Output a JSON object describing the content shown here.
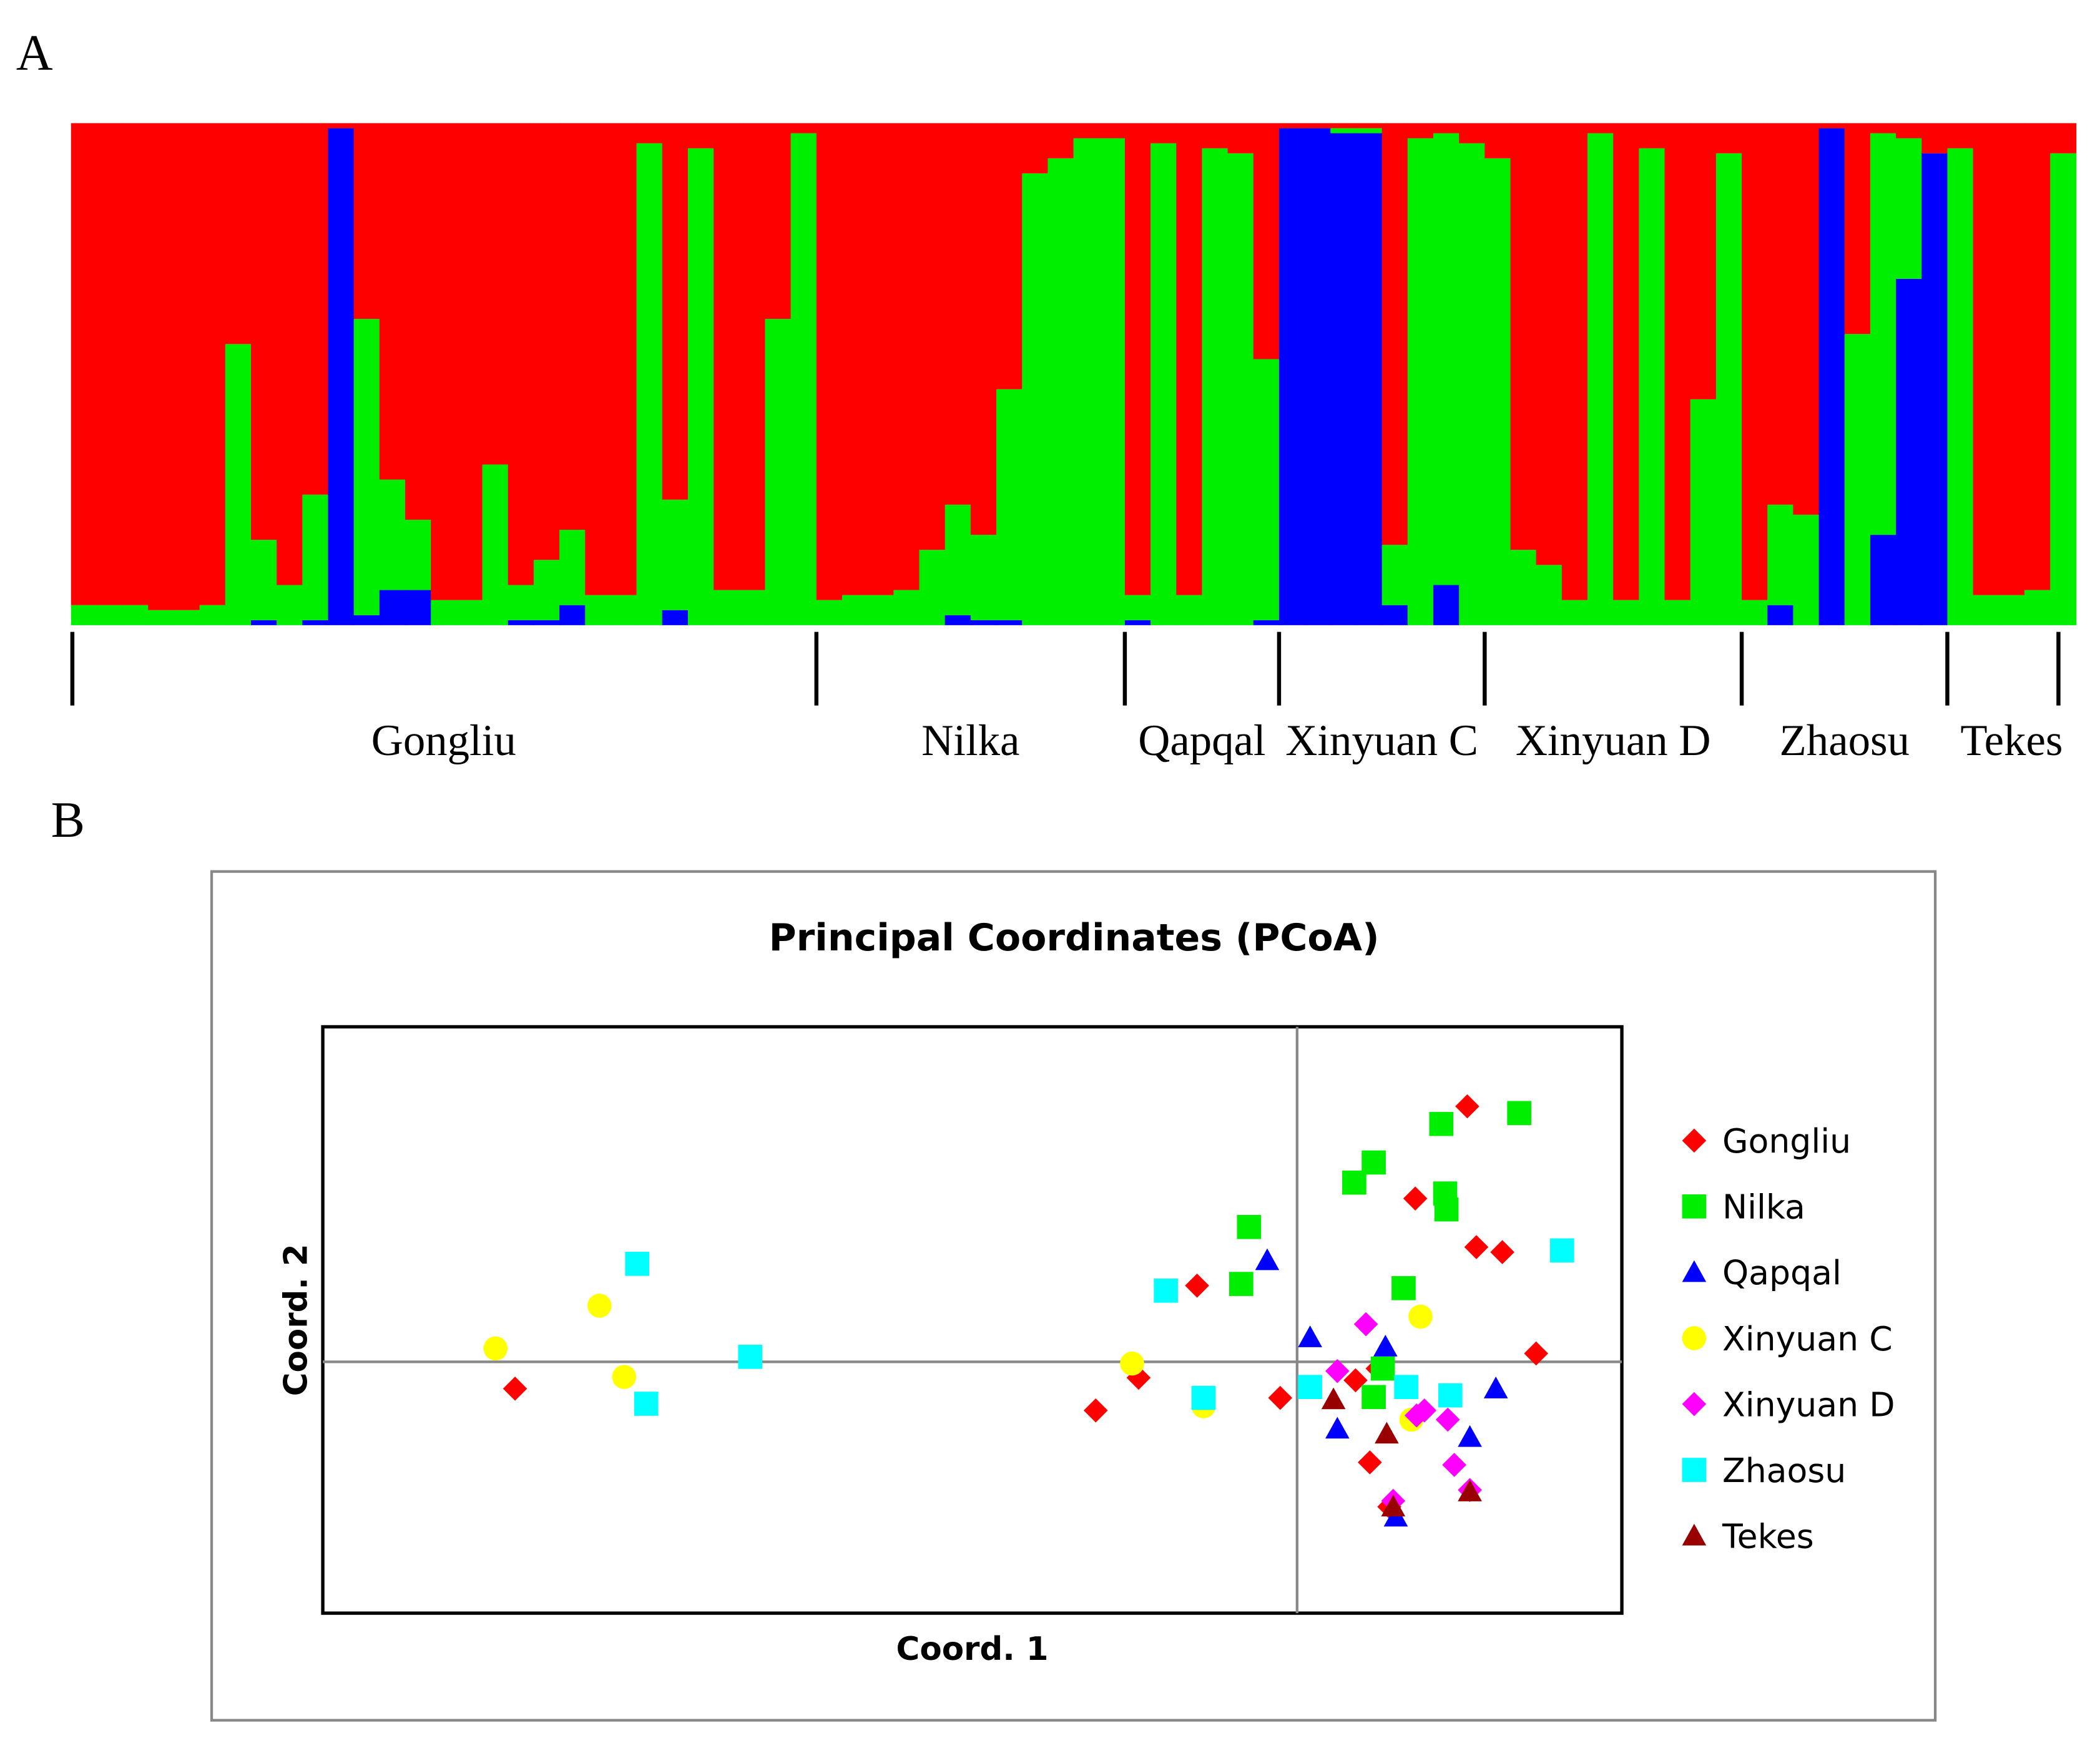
{
  "chart_data": [
    {
      "type": "bar",
      "stacked": true,
      "panel": "A",
      "ylim": [
        0,
        1
      ],
      "categories": [
        "Gongliu",
        "Gongliu",
        "Gongliu",
        "Gongliu",
        "Gongliu",
        "Gongliu",
        "Gongliu",
        "Gongliu",
        "Gongliu",
        "Gongliu",
        "Gongliu",
        "Gongliu",
        "Gongliu",
        "Gongliu",
        "Gongliu",
        "Gongliu",
        "Gongliu",
        "Gongliu",
        "Gongliu",
        "Gongliu",
        "Gongliu",
        "Gongliu",
        "Gongliu",
        "Gongliu",
        "Gongliu",
        "Gongliu",
        "Gongliu",
        "Gongliu",
        "Gongliu",
        "Nilka",
        "Nilka",
        "Nilka",
        "Nilka",
        "Nilka",
        "Nilka",
        "Nilka",
        "Nilka",
        "Nilka",
        "Nilka",
        "Nilka",
        "Nilka",
        "Qapqal",
        "Qapqal",
        "Qapqal",
        "Qapqal",
        "Qapqal",
        "Qapqal",
        "Xinyuan C",
        "Xinyuan C",
        "Xinyuan C",
        "Xinyuan C",
        "Xinyuan C",
        "Xinyuan C",
        "Xinyuan C",
        "Xinyuan C",
        "Xinyuan D",
        "Xinyuan D",
        "Xinyuan D",
        "Xinyuan D",
        "Xinyuan D",
        "Xinyuan D",
        "Xinyuan D",
        "Xinyuan D",
        "Xinyuan D",
        "Xinyuan D",
        "Zhaosu",
        "Zhaosu",
        "Zhaosu",
        "Zhaosu",
        "Zhaosu",
        "Zhaosu",
        "Zhaosu",
        "Zhaosu",
        "Tekes",
        "Tekes",
        "Tekes",
        "Tekes",
        "Tekes"
      ],
      "series": [
        {
          "color": "#0000ff",
          "values": [
            0,
            0,
            0,
            0,
            0,
            0,
            0,
            0.01,
            0,
            0.01,
            0.99,
            0.02,
            0.07,
            0.07,
            0,
            0,
            0,
            0.01,
            0.01,
            0.04,
            0,
            0,
            0,
            0.03,
            0,
            0,
            0,
            0,
            0,
            0,
            0,
            0,
            0,
            0,
            0.02,
            0.01,
            0.01,
            0,
            0,
            0,
            0,
            0.01,
            0,
            0,
            0,
            0,
            0.01,
            0.99,
            0.99,
            0.98,
            0.98,
            0.04,
            0,
            0.08,
            0,
            0,
            0,
            0,
            0,
            0,
            0,
            0,
            0,
            0,
            0,
            0,
            0.04,
            0,
            0.99,
            0,
            0.18,
            0.69,
            0.94,
            0,
            0,
            0,
            0,
            0
          ]
        },
        {
          "color": "#00ee00",
          "values": [
            0.04,
            0.04,
            0.04,
            0.03,
            0.03,
            0.04,
            0.56,
            0.16,
            0.08,
            0.25,
            0,
            0.59,
            0.22,
            0.14,
            0.05,
            0.05,
            0.32,
            0.07,
            0.12,
            0.15,
            0.06,
            0.06,
            0.96,
            0.22,
            0.95,
            0.07,
            0.07,
            0.61,
            0.98,
            0.05,
            0.06,
            0.06,
            0.07,
            0.15,
            0.22,
            0.17,
            0.46,
            0.9,
            0.93,
            0.97,
            0.97,
            0.05,
            0.96,
            0.06,
            0.95,
            0.94,
            0.52,
            0,
            0,
            0.01,
            0.01,
            0.12,
            0.97,
            0.9,
            0.96,
            0.93,
            0.15,
            0.12,
            0.05,
            0.98,
            0.05,
            0.95,
            0.05,
            0.45,
            0.94,
            0.05,
            0.2,
            0.22,
            0,
            0.58,
            0.8,
            0.28,
            0,
            0.95,
            0.06,
            0.06,
            0.07,
            0.94
          ]
        },
        {
          "color": "#ff0000",
          "values": [
            0.96,
            0.96,
            0.96,
            0.97,
            0.97,
            0.96,
            0.44,
            0.83,
            0.92,
            0.74,
            0.01,
            0.39,
            0.71,
            0.79,
            0.95,
            0.95,
            0.68,
            0.92,
            0.87,
            0.81,
            0.94,
            0.94,
            0.04,
            0.75,
            0.05,
            0.93,
            0.93,
            0.39,
            0.02,
            0.95,
            0.94,
            0.94,
            0.93,
            0.85,
            0.76,
            0.82,
            0.53,
            0.1,
            0.07,
            0.03,
            0.03,
            0.94,
            0.04,
            0.94,
            0.05,
            0.06,
            0.47,
            0.01,
            0.01,
            0.01,
            0.01,
            0.84,
            0.03,
            0.02,
            0.04,
            0.07,
            0.85,
            0.88,
            0.95,
            0.02,
            0.95,
            0.05,
            0.95,
            0.55,
            0.06,
            0.95,
            0.76,
            0.78,
            0.01,
            0.42,
            0.02,
            0.03,
            0.06,
            0.05,
            0.94,
            0.94,
            0.93,
            0.06
          ]
        }
      ]
    },
    {
      "type": "scatter",
      "panel": "B",
      "title": "Principal Coordinates (PCoA)",
      "xlabel": "Coord. 1",
      "ylabel": "Coord. 2",
      "xlim": [
        -0.75,
        0.25
      ],
      "ylim": [
        -0.3,
        0.4
      ],
      "legend": "right",
      "series": [
        {
          "name": "Gongliu",
          "color": "#ff0000",
          "marker": "diamond",
          "x": [
            0.131,
            0.091,
            0.138,
            0.158,
            -0.077,
            0.184,
            -0.602,
            -0.155,
            -0.122,
            -0.013,
            0.045,
            0.056,
            0.071,
            0.062
          ],
          "y": [
            0.305,
            0.195,
            0.137,
            0.131,
            0.091,
            0.01,
            -0.032,
            -0.058,
            -0.019,
            -0.043,
            -0.022,
            -0.12,
            -0.173,
            -0.008
          ]
        },
        {
          "name": "Nilka",
          "color": "#00ee00",
          "marker": "square",
          "x": [
            0.171,
            0.111,
            0.059,
            0.044,
            0.114,
            0.115,
            -0.037,
            -0.043,
            0.082,
            0.066,
            0.059
          ],
          "y": [
            0.297,
            0.284,
            0.238,
            0.214,
            0.201,
            0.182,
            0.161,
            0.093,
            0.088,
            -0.008,
            -0.042
          ]
        },
        {
          "name": "Qapqal",
          "color": "#0000ff",
          "marker": "triangle",
          "x": [
            -0.023,
            0.01,
            0.068,
            0.153,
            0.031,
            0.133,
            0.076
          ],
          "y": [
            0.121,
            0.029,
            0.018,
            -0.032,
            -0.08,
            -0.09,
            -0.185
          ]
        },
        {
          "name": "Xinyuan C",
          "color": "#ffff00",
          "marker": "circle",
          "x": [
            -0.617,
            -0.537,
            -0.518,
            -0.127,
            0.095,
            -0.072,
            0.088
          ],
          "y": [
            0.016,
            0.067,
            -0.018,
            -0.002,
            0.054,
            -0.053,
            -0.069
          ]
        },
        {
          "name": "Xinyuan D",
          "color": "#ff00ff",
          "marker": "diamond",
          "x": [
            0.053,
            0.031,
            0.092,
            0.098,
            0.116,
            0.121,
            0.133,
            0.074
          ],
          "y": [
            0.045,
            -0.011,
            -0.064,
            -0.058,
            -0.069,
            -0.123,
            -0.153,
            -0.166
          ]
        },
        {
          "name": "Zhaosu",
          "color": "#00ffff",
          "marker": "square",
          "x": [
            -0.508,
            -0.421,
            -0.501,
            -0.101,
            -0.072,
            0.01,
            0.084,
            0.118,
            0.204
          ],
          "y": [
            0.117,
            0.006,
            -0.05,
            0.085,
            -0.043,
            -0.03,
            -0.03,
            -0.04,
            0.133
          ]
        },
        {
          "name": "Tekes",
          "color": "#990000",
          "marker": "triangle",
          "x": [
            0.028,
            0.069,
            0.074,
            0.133
          ],
          "y": [
            -0.045,
            -0.086,
            -0.173,
            -0.155
          ]
        }
      ]
    }
  ]
}
